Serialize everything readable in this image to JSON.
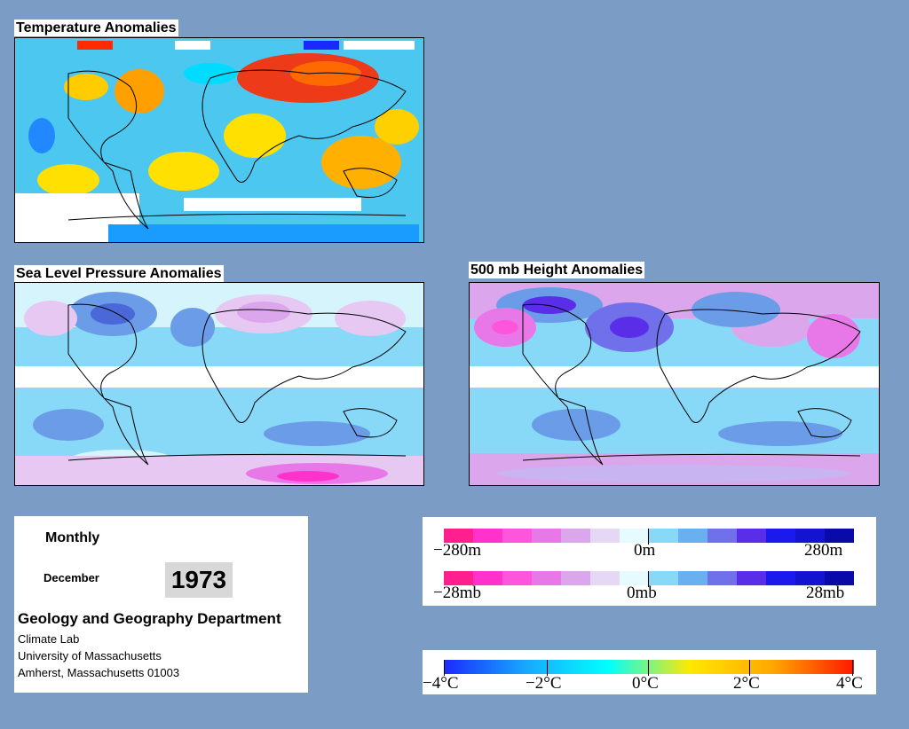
{
  "panels": {
    "temperature": {
      "title": "Temperature Anomalies"
    },
    "slp": {
      "title": "Sea Level Pressure Anomalies"
    },
    "height": {
      "title": "500 mb Height Anomalies"
    }
  },
  "info": {
    "period": "Monthly",
    "month": "December",
    "year": "1973",
    "department": "Geology and Geography Department",
    "lab": "Climate Lab",
    "university": "University of Massachusetts",
    "address": "Amherst, Massachusetts 01003"
  },
  "legends": {
    "height": {
      "min": "−280m",
      "mid": "0m",
      "max": "280m",
      "colors": [
        "#ff1f8f",
        "#ff33cc",
        "#ff55dd",
        "#e878e8",
        "#dca6ec",
        "#e4d8f4",
        "#e6fbff",
        "#88d8f8",
        "#6ab0f0",
        "#7070ea",
        "#5a2ee8",
        "#1a1aee",
        "#1414d0",
        "#0a0aa8"
      ]
    },
    "pressure": {
      "min": "−28mb",
      "mid": "0mb",
      "max": "28mb",
      "colors": [
        "#ff1f8f",
        "#ff33cc",
        "#ff55dd",
        "#e878e8",
        "#dca6ec",
        "#e4d8f4",
        "#e6fbff",
        "#88d8f8",
        "#6ab0f0",
        "#7070ea",
        "#5a2ee8",
        "#1a1aee",
        "#1414d0",
        "#0a0aa8"
      ]
    },
    "temperature": {
      "labels": [
        "−4°C",
        "−2°C",
        "0°C",
        "2°C",
        "4°C"
      ],
      "gradient": [
        "#1a2aff",
        "#18a8ff",
        "#00ffff",
        "#ffe800",
        "#ffa800",
        "#ff1800"
      ]
    }
  }
}
